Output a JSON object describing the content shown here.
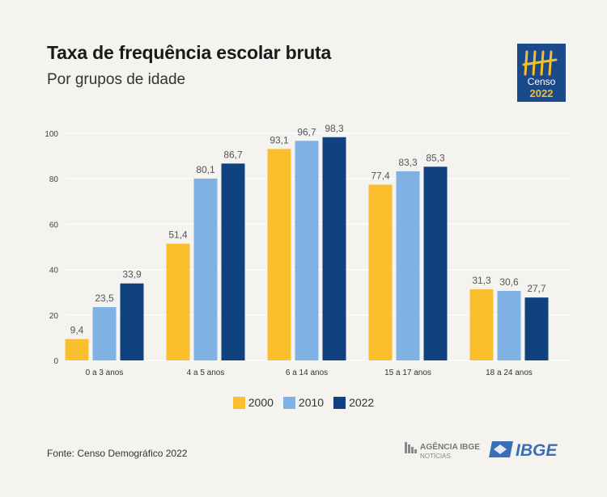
{
  "title": "Taxa de frequência escolar bruta",
  "subtitle": "Por grupos de idade",
  "logo": {
    "lines": [
      "Censo",
      "2022"
    ],
    "bg": "#1b4a8a",
    "accent": "#f3c02b"
  },
  "source": "Fonte: Censo Demográfico 2022",
  "footer_logos": {
    "agencia_top": "AGÊNCIA IBGE",
    "agencia_bottom": "NOTÍCIAS",
    "ibge": "IBGE"
  },
  "chart_data": {
    "type": "bar",
    "title": "Taxa de frequência escolar bruta",
    "subtitle": "Por grupos de idade",
    "categories": [
      "0 a 3 anos",
      "4 a 5 anos",
      "6 a 14 anos",
      "15 a 17 anos",
      "18 a 24 anos"
    ],
    "series": [
      {
        "name": "2000",
        "color": "#fbbf2e",
        "values": [
          9.4,
          51.4,
          93.1,
          77.4,
          31.3
        ],
        "labels": [
          "9,4",
          "51,4",
          "93,1",
          "77,4",
          "31,3"
        ]
      },
      {
        "name": "2010",
        "color": "#7fb1e3",
        "values": [
          23.5,
          80.1,
          96.7,
          83.3,
          30.6
        ],
        "labels": [
          "23,5",
          "80,1",
          "96,7",
          "83,3",
          "30,6"
        ]
      },
      {
        "name": "2022",
        "color": "#0f427e",
        "values": [
          33.9,
          86.7,
          98.3,
          85.3,
          27.7
        ],
        "labels": [
          "33,9",
          "86,7",
          "98,3",
          "85,3",
          "27,7"
        ]
      }
    ],
    "ylim": [
      0,
      100
    ],
    "yticks": [
      "0",
      "20",
      "40",
      "60",
      "80",
      "100"
    ],
    "grid": true,
    "legend_position": "bottom-center"
  }
}
